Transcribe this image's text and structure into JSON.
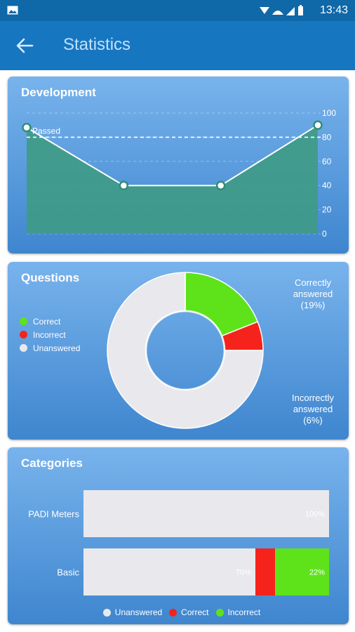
{
  "status_bar": {
    "time": "13:43"
  },
  "app_bar": {
    "title": "Statistics"
  },
  "development": {
    "title": "Development",
    "passed_label": "Passed",
    "chart_data": {
      "type": "area",
      "x": [
        1,
        2,
        3,
        4
      ],
      "values": [
        88,
        40,
        40,
        90
      ],
      "threshold": 80,
      "yticks": [
        "100",
        "80",
        "60",
        "40",
        "20",
        "0"
      ],
      "ylim": [
        0,
        100
      ],
      "grid": true
    }
  },
  "questions": {
    "title": "Questions",
    "legend": [
      {
        "label": "Correct",
        "color": "#5ee31b"
      },
      {
        "label": "Incorrect",
        "color": "#f5231b"
      },
      {
        "label": "Unanswered",
        "color": "#e9e9ed"
      }
    ],
    "correct_label": [
      "Correctly",
      "answered",
      "(19%)"
    ],
    "incorrect_label": [
      "Incorrectly",
      "answered",
      "(6%)"
    ],
    "chart_data": {
      "type": "pie",
      "labels": [
        "Correct",
        "Incorrect",
        "Unanswered"
      ],
      "values": [
        19,
        6,
        75
      ],
      "colors": [
        "#5ee31b",
        "#f5231b",
        "#e9e9ed"
      ]
    }
  },
  "categories": {
    "title": "Categories",
    "chart_data": {
      "type": "bar",
      "stacked": true,
      "categories": [
        "PADI Meters",
        "Basic"
      ],
      "series": [
        {
          "name": "Unanswered",
          "values": [
            100,
            70
          ],
          "labels": [
            "100%",
            "70%"
          ],
          "color": "#e9e9ed"
        },
        {
          "name": "Correct",
          "values": [
            0,
            8
          ],
          "labels": [
            "",
            ""
          ],
          "color": "#f5231b"
        },
        {
          "name": "Incorrect",
          "values": [
            0,
            22
          ],
          "labels": [
            "",
            "22%"
          ],
          "color": "#5ee31b"
        }
      ]
    },
    "legend": [
      {
        "label": "Unanswered",
        "color": "#e9e9ed"
      },
      {
        "label": "Correct",
        "color": "#f5231b"
      },
      {
        "label": "Incorrect",
        "color": "#5ee31b"
      }
    ]
  }
}
